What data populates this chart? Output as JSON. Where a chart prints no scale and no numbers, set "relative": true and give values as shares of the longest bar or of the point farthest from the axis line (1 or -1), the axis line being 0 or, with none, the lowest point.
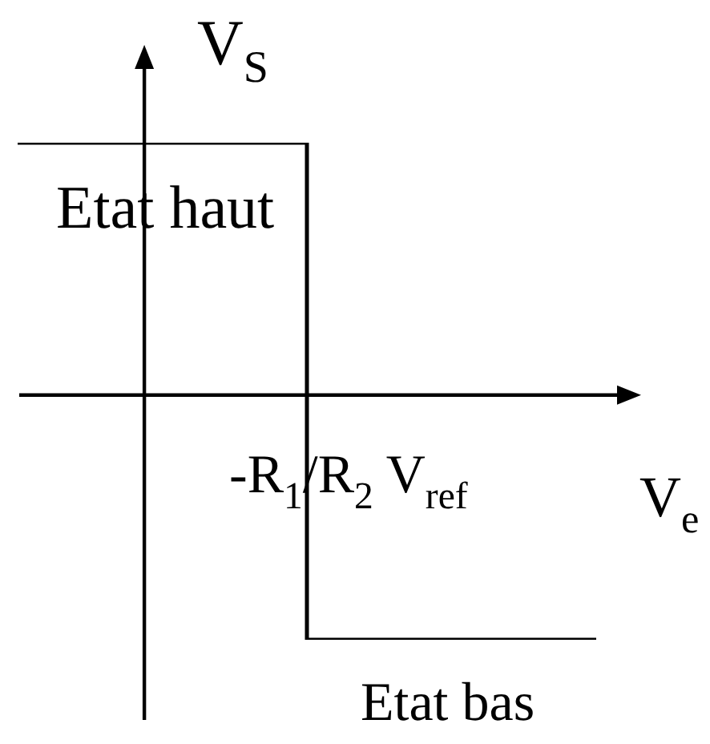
{
  "chart_data": {
    "type": "step",
    "xlabel": "V$_{e}$",
    "ylabel": "V$_{S}$",
    "categories": [
      null,
      null,
      null
    ],
    "values": [
      1,
      -0.97,
      -0.97
    ],
    "relative": true,
    "color": "#000000",
    "annotations": [
      "Etat haut",
      "-R$_{1}$/R$_{2}$ V$_{ref}$",
      "Etat bas"
    ]
  }
}
